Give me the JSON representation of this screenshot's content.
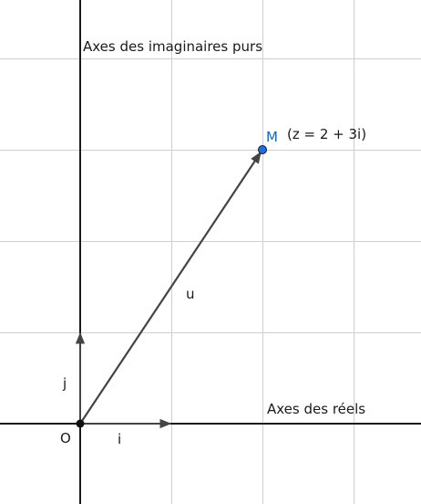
{
  "labels": {
    "imaginary_axis": "Axes des imaginaires purs",
    "real_axis": "Axes des réels",
    "origin": "O",
    "unit_i": "i",
    "unit_j": "j",
    "vector": "u",
    "point": "M",
    "point_note": "(z = 2 + 3i)"
  },
  "plane": {
    "point_M": {
      "re": 2,
      "im": 3
    },
    "unit_vector_i": {
      "re": 1,
      "im": 0
    },
    "unit_vector_j": {
      "re": 0,
      "im": 1
    }
  },
  "colors": {
    "grid": "#cfcfcf",
    "axis": "#1a1a1a",
    "vector": "#444444",
    "point_fill": "#1e6fd9",
    "point_label": "#1565c0"
  }
}
